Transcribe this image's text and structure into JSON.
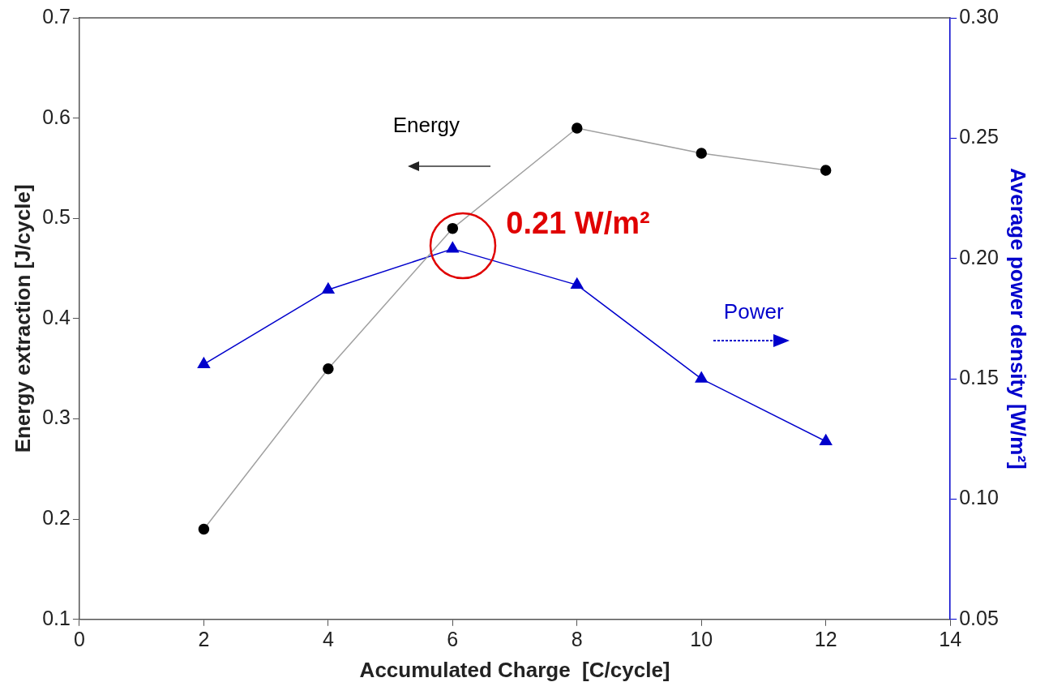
{
  "chart_data": {
    "type": "line",
    "xlabel": "Accumulated Charge  [C/cycle]",
    "ylabel": "Energy extraction [J/cycle]",
    "y2label": "Average power density [W/m²]",
    "x": [
      2,
      4,
      6,
      8,
      10,
      12
    ],
    "series": [
      {
        "name": "Energy",
        "color": "#000000",
        "marker": "circle",
        "values": [
          0.19,
          0.35,
          0.49,
          0.59,
          0.565,
          0.548
        ]
      },
      {
        "name": "Power",
        "color": "#0000cc",
        "marker": "triangle",
        "axis": "y2",
        "values": [
          0.156,
          0.187,
          0.204,
          0.189,
          0.15,
          0.124
        ]
      }
    ],
    "xlim": [
      0,
      14
    ],
    "xticks": [
      0,
      2,
      4,
      6,
      8,
      10,
      12,
      14
    ],
    "ylim": [
      0.1,
      0.7
    ],
    "yticks": [
      0.1,
      0.2,
      0.3,
      0.4,
      0.5,
      0.6,
      0.7
    ],
    "y2lim": [
      0.05,
      0.3
    ],
    "y2ticks": [
      0.05,
      {
        "value": 0.1,
        "label": "0.10"
      },
      0.15,
      {
        "value": 0.2,
        "label": "0.20"
      },
      0.25,
      {
        "value": 0.3,
        "label": "0.30"
      }
    ],
    "annotations": [
      "0.21 W/m²"
    ],
    "grid": false,
    "legend": false
  }
}
